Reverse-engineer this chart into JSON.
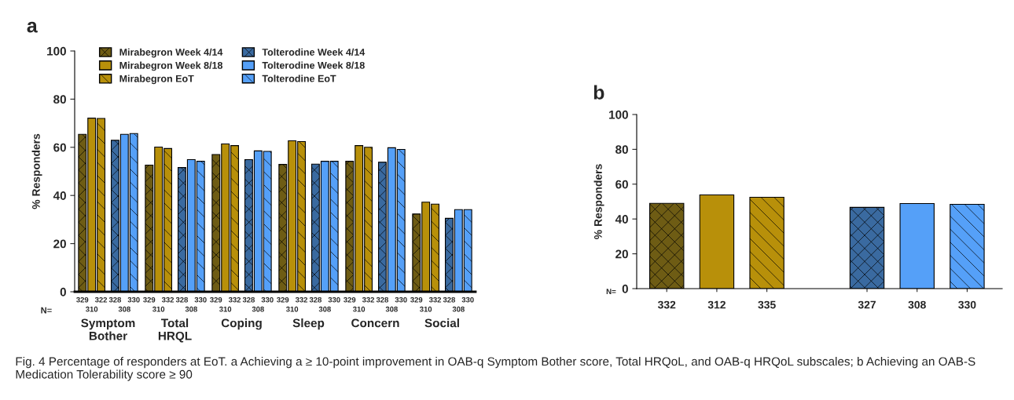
{
  "chart_data": [
    {
      "type": "bar",
      "title": "a",
      "ylabel": "% Responders",
      "categories": [
        "Symptom\nBother",
        "Total\nHRQL",
        "Coping",
        "Sleep",
        "Concern",
        "Social"
      ],
      "series": [
        {
          "name": "Mirabegron Week 4/14",
          "color": "#6e5c14",
          "values": [
            65.4,
            52.6,
            57.0,
            52.9,
            54.2,
            32.3
          ]
        },
        {
          "name": "Mirabegron Week 8/18",
          "color": "#b8900a",
          "values": [
            72.1,
            60.1,
            61.4,
            62.7,
            60.7,
            37.2
          ]
        },
        {
          "name": "Mirabegron EoT",
          "color": "#b8900a",
          "values": [
            72.0,
            59.5,
            60.7,
            62.4,
            60.0,
            36.4
          ]
        },
        {
          "name": "Tolterodine Week 4/14",
          "color": "#3a6aa0",
          "values": [
            62.9,
            51.6,
            54.9,
            53.0,
            53.8,
            30.5
          ]
        },
        {
          "name": "Tolterodine Week 8/18",
          "color": "#55a0f8",
          "values": [
            65.4,
            54.9,
            58.5,
            54.2,
            59.8,
            34.1
          ]
        },
        {
          "name": "Tolterodine EoT",
          "color": "#55a0f8",
          "values": [
            65.7,
            54.2,
            58.3,
            54.2,
            59.1,
            34.1
          ]
        }
      ],
      "ylim": [
        0,
        100
      ],
      "yticks": [
        0,
        20,
        40,
        60,
        80,
        100
      ],
      "grid": false,
      "legend": "top left",
      "annotations": [
        "Fig. 4 Percentage of responders at EoT. a Achieving a ≥ 10-point improvement in OAB-q Symptom Bother score, Total HRQoL, and OAB-q HRQoL subscales; b Achieving an OAB-S Medication Tolerability score ≥ 90",
        "N=",
        "329",
        "310",
        "322",
        "328",
        "308",
        "330",
        "329",
        "310",
        "332",
        "328",
        "308",
        "330",
        "329",
        "310",
        "332",
        "328",
        "308",
        "330",
        "329",
        "310",
        "332",
        "328",
        "308",
        "330",
        "329",
        "310",
        "332",
        "328",
        "308",
        "330",
        "329",
        "310",
        "332",
        "328",
        "308",
        "330"
      ]
    },
    {
      "type": "bar",
      "title": "b",
      "ylabel": "% Responders",
      "categories": [
        "332",
        "312",
        "335",
        null,
        "327",
        "308",
        "330"
      ],
      "values": [
        49.0,
        53.8,
        52.5,
        null,
        46.7,
        48.9,
        48.4
      ],
      "colors": [
        "#6e5c14",
        "#b8900a",
        "#b8900a",
        null,
        "#3a6aa0",
        "#55a0f8",
        "#55a0f8"
      ],
      "ylim": [
        0,
        100
      ],
      "yticks": [
        0,
        20,
        40,
        60,
        80,
        100
      ],
      "grid": false,
      "annotations": [
        "N="
      ]
    }
  ]
}
